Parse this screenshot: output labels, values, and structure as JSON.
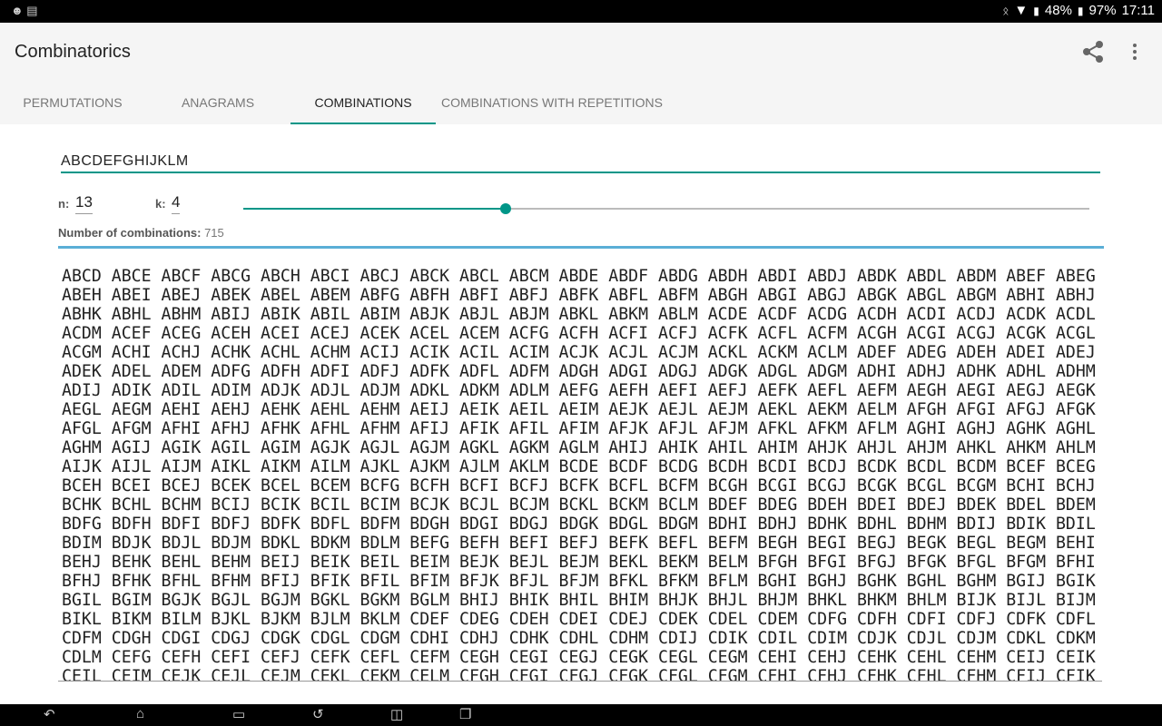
{
  "status": {
    "battery1": "48%",
    "battery2": "97%",
    "time": "17:11"
  },
  "app": {
    "title": "Combinatorics"
  },
  "tabs": [
    {
      "label": "PERMUTATIONS"
    },
    {
      "label": "ANAGRAMS"
    },
    {
      "label": "COMBINATIONS",
      "selected": true
    },
    {
      "label": "COMBINATIONS WITH REPETITIONS"
    }
  ],
  "icons": {
    "share": "share-icon",
    "more": "more-vert-icon"
  },
  "form": {
    "input_value": "ABCDEFGHIJKLM",
    "n_label": "n:",
    "n_value": "13",
    "k_label": "k:",
    "k_value": "4",
    "slider_fraction": 0.31,
    "count_label": "Number of combinations:",
    "count_value": "715"
  },
  "colors": {
    "accent": "#009688",
    "separator": "#5aaed6"
  },
  "results": [
    "ABCD ABCE ABCF ABCG ABCH ABCI ABCJ ABCK ABCL ABCM ABDE ABDF ABDG ABDH ABDI ABDJ ABDK ABDL ABDM ABEF ABEG",
    "ABEH ABEI ABEJ ABEK ABEL ABEM ABFG ABFH ABFI ABFJ ABFK ABFL ABFM ABGH ABGI ABGJ ABGK ABGL ABGM ABHI ABHJ",
    "ABHK ABHL ABHM ABIJ ABIK ABIL ABIM ABJK ABJL ABJM ABKL ABKM ABLM ACDE ACDF ACDG ACDH ACDI ACDJ ACDK ACDL",
    "ACDM ACEF ACEG ACEH ACEI ACEJ ACEK ACEL ACEM ACFG ACFH ACFI ACFJ ACFK ACFL ACFM ACGH ACGI ACGJ ACGK ACGL",
    "ACGM ACHI ACHJ ACHK ACHL ACHM ACIJ ACIK ACIL ACIM ACJK ACJL ACJM ACKL ACKM ACLM ADEF ADEG ADEH ADEI ADEJ",
    "ADEK ADEL ADEM ADFG ADFH ADFI ADFJ ADFK ADFL ADFM ADGH ADGI ADGJ ADGK ADGL ADGM ADHI ADHJ ADHK ADHL ADHM",
    "ADIJ ADIK ADIL ADIM ADJK ADJL ADJM ADKL ADKM ADLM AEFG AEFH AEFI AEFJ AEFK AEFL AEFM AEGH AEGI AEGJ AEGK",
    "AEGL AEGM AEHI AEHJ AEHK AEHL AEHM AEIJ AEIK AEIL AEIM AEJK AEJL AEJM AEKL AEKM AELM AFGH AFGI AFGJ AFGK",
    "AFGL AFGM AFHI AFHJ AFHK AFHL AFHM AFIJ AFIK AFIL AFIM AFJK AFJL AFJM AFKL AFKM AFLM AGHI AGHJ AGHK AGHL",
    "AGHM AGIJ AGIK AGIL AGIM AGJK AGJL AGJM AGKL AGKM AGLM AHIJ AHIK AHIL AHIM AHJK AHJL AHJM AHKL AHKM AHLM",
    "AIJK AIJL AIJM AIKL AIKM AILM AJKL AJKM AJLM AKLM BCDE BCDF BCDG BCDH BCDI BCDJ BCDK BCDL BCDM BCEF BCEG",
    "BCEH BCEI BCEJ BCEK BCEL BCEM BCFG BCFH BCFI BCFJ BCFK BCFL BCFM BCGH BCGI BCGJ BCGK BCGL BCGM BCHI BCHJ",
    "BCHK BCHL BCHM BCIJ BCIK BCIL BCIM BCJK BCJL BCJM BCKL BCKM BCLM BDEF BDEG BDEH BDEI BDEJ BDEK BDEL BDEM",
    "BDFG BDFH BDFI BDFJ BDFK BDFL BDFM BDGH BDGI BDGJ BDGK BDGL BDGM BDHI BDHJ BDHK BDHL BDHM BDIJ BDIK BDIL",
    "BDIM BDJK BDJL BDJM BDKL BDKM BDLM BEFG BEFH BEFI BEFJ BEFK BEFL BEFM BEGH BEGI BEGJ BEGK BEGL BEGM BEHI",
    "BEHJ BEHK BEHL BEHM BEIJ BEIK BEIL BEIM BEJK BEJL BEJM BEKL BEKM BELM BFGH BFGI BFGJ BFGK BFGL BFGM BFHI",
    "BFHJ BFHK BFHL BFHM BFIJ BFIK BFIL BFIM BFJK BFJL BFJM BFKL BFKM BFLM BGHI BGHJ BGHK BGHL BGHM BGIJ BGIK",
    "BGIL BGIM BGJK BGJL BGJM BGKL BGKM BGLM BHIJ BHIK BHIL BHIM BHJK BHJL BHJM BHKL BHKM BHLM BIJK BIJL BIJM",
    "BIKL BIKM BILM BJKL BJKM BJLM BKLM CDEF CDEG CDEH CDEI CDEJ CDEK CDEL CDEM CDFG CDFH CDFI CDFJ CDFK CDFL",
    "CDFM CDGH CDGI CDGJ CDGK CDGL CDGM CDHI CDHJ CDHK CDHL CDHM CDIJ CDIK CDIL CDIM CDJK CDJL CDJM CDKL CDKM",
    "CDLM CEFG CEFH CEFI CEFJ CEFK CEFL CEFM CEGH CEGI CEGJ CEGK CEGL CEGM CEHI CEHJ CEHK CEHL CEHM CEIJ CEIK",
    "CEIL CEIM CEJK CEJL CEJM CEKL CEKM CELM CFGH CFGI CFGJ CFGK CFGL CFGM CFHI CFHJ CFHK CFHL CFHM CFIJ CFIK"
  ]
}
